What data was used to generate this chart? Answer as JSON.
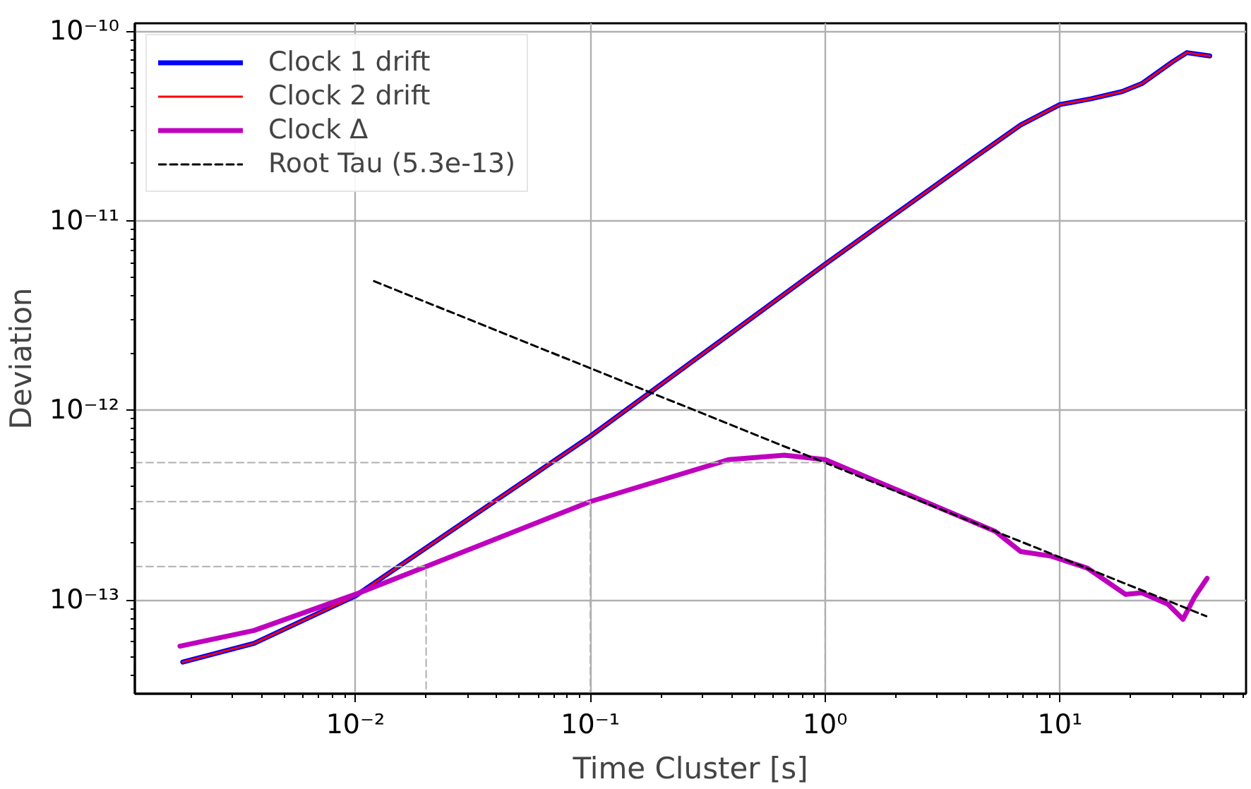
{
  "chart_data": {
    "type": "line",
    "xlabel": "Time Cluster [s]",
    "ylabel": "Deviation",
    "log": "xy",
    "grid": true,
    "legend": "top left",
    "line_style": "solid",
    "marker": "none",
    "xlim": [
      0.00115,
      62
    ],
    "ylim": [
      3.2e-14,
      1.1e-10
    ],
    "xticks": [
      {
        "value": 0.01,
        "label": "10⁻²"
      },
      {
        "value": 0.1,
        "label": "10⁻¹"
      },
      {
        "value": 1,
        "label": "10⁰"
      },
      {
        "value": 10,
        "label": "10¹"
      }
    ],
    "yticks": [
      {
        "value": 1e-13,
        "label": "10⁻¹³"
      },
      {
        "value": 1e-12,
        "label": "10⁻¹²"
      },
      {
        "value": 1e-11,
        "label": "10⁻¹¹"
      },
      {
        "value": 1e-10,
        "label": "10⁻¹⁰"
      }
    ],
    "series": [
      {
        "name": "Clock 1 drift",
        "color": "#0000ff",
        "x": [
          0.00184,
          0.0037,
          0.01,
          0.1,
          1,
          4.2,
          6.8,
          10,
          13.6,
          18.4,
          22.4,
          30.2,
          34.7,
          43.4
        ],
        "values": [
          4.7e-14,
          5.9e-14,
          1.05e-13,
          7.3e-13,
          5.9e-12,
          2.1e-11,
          3.2e-11,
          4.1e-11,
          4.4e-11,
          4.8e-11,
          5.3e-11,
          6.9e-11,
          7.7e-11,
          7.4e-11
        ]
      },
      {
        "name": "Clock 2 drift",
        "color": "#ff0000",
        "x": [
          0.00184,
          0.0037,
          0.01,
          0.1,
          1,
          4.2,
          6.8,
          10,
          13.6,
          18.4,
          22.4,
          30.2,
          34.7,
          43.4
        ],
        "values": [
          4.7e-14,
          5.9e-14,
          1.05e-13,
          7.3e-13,
          5.9e-12,
          2.1e-11,
          3.2e-11,
          4.1e-11,
          4.4e-11,
          4.8e-11,
          5.3e-11,
          6.9e-11,
          7.7e-11,
          7.4e-11
        ]
      },
      {
        "name": "Clock Δ",
        "color": "#bf00bf",
        "x": [
          0.00179,
          0.0037,
          0.01,
          0.02,
          0.1,
          0.39,
          0.67,
          1,
          5.3,
          6.8,
          9.2,
          13.1,
          19.0,
          22.3,
          28.8,
          33.4,
          37.5,
          42.3
        ],
        "values": [
          5.7e-14,
          6.9e-14,
          1.07e-13,
          1.5e-13,
          3.3e-13,
          5.5e-13,
          5.8e-13,
          5.5e-13,
          2.3e-13,
          1.8e-13,
          1.7e-13,
          1.47e-13,
          1.07e-13,
          1.09e-13,
          9.5e-14,
          7.9e-14,
          1.04e-13,
          1.3e-13
        ]
      },
      {
        "name": "Root Tau (5.3e-13)",
        "color": "#000000",
        "line_style": "dashed",
        "x": [
          0.012,
          42
        ],
        "values": [
          4.8e-12,
          8.2e-14
        ]
      },
      {
        "color": "#b0b0b0",
        "line_style": "dashed",
        "x": [
          0.00115,
          0.02,
          0.02
        ],
        "values": [
          1.5e-13,
          1.5e-13,
          3.2e-14
        ]
      },
      {
        "color": "#b0b0b0",
        "line_style": "dashed",
        "x": [
          0.00115,
          0.1,
          0.1
        ],
        "values": [
          3.3e-13,
          3.3e-13,
          3.2e-14
        ]
      },
      {
        "color": "#b0b0b0",
        "line_style": "dashed",
        "x": [
          0.00115,
          1,
          1
        ],
        "values": [
          5.3e-13,
          5.3e-13,
          3.2e-14
        ]
      }
    ]
  }
}
